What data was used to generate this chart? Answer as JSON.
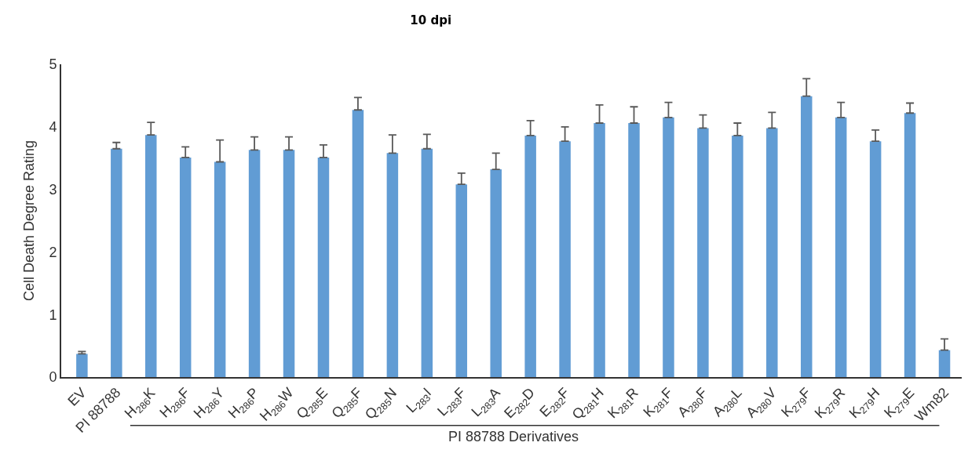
{
  "chart_data": {
    "type": "bar",
    "title": "10 dpi",
    "ylabel": "Cell Death Degree Rating",
    "categories": [
      "EV",
      "PI 88788",
      "H$_{286}$K",
      "H$_{286}$F",
      "H$_{286}$Y",
      "H$_{286}$P",
      "H$_{286}$W",
      "Q$_{285}$E",
      "Q$_{285}$F",
      "Q$_{285}$N",
      "L$_{283}$I",
      "L$_{283}$F",
      "L$_{283}$A",
      "E$_{282}$D",
      "E$_{282}$F",
      "Q$_{281}$H",
      "K$_{281}$R",
      "K$_{281}$F",
      "A$_{280}$F",
      "A$_{280}$L",
      "A$_{280}$V",
      "K$_{279}$F",
      "K$_{279}$R",
      "K$_{279}$H",
      "K$_{279}$E",
      "Wm82"
    ],
    "values": [
      0.37,
      3.65,
      3.87,
      3.51,
      3.44,
      3.63,
      3.63,
      3.51,
      4.27,
      3.58,
      3.65,
      3.08,
      3.32,
      3.86,
      3.77,
      4.06,
      4.06,
      4.15,
      3.98,
      3.86,
      3.98,
      4.49,
      4.15,
      3.77,
      4.22,
      0.43
    ],
    "errors": [
      [
        0.37,
        0.41
      ],
      [
        3.65,
        3.75
      ],
      [
        3.87,
        4.07
      ],
      [
        3.51,
        3.68
      ],
      [
        3.44,
        3.79
      ],
      [
        3.63,
        3.84
      ],
      [
        3.63,
        3.84
      ],
      [
        3.51,
        3.71
      ],
      [
        4.27,
        4.47
      ],
      [
        3.58,
        3.87
      ],
      [
        3.65,
        3.88
      ],
      [
        3.08,
        3.26
      ],
      [
        3.32,
        3.58
      ],
      [
        3.86,
        4.1
      ],
      [
        3.77,
        4.0
      ],
      [
        4.06,
        4.35
      ],
      [
        4.06,
        4.32
      ],
      [
        4.15,
        4.39
      ],
      [
        3.98,
        4.19
      ],
      [
        3.86,
        4.06
      ],
      [
        3.98,
        4.23
      ],
      [
        4.49,
        4.77
      ],
      [
        4.15,
        4.39
      ],
      [
        3.77,
        3.95
      ],
      [
        4.22,
        4.38
      ],
      [
        0.43,
        0.61
      ]
    ],
    "color": "#619cd4",
    "ylim": [
      0,
      5
    ],
    "yticks": [
      0,
      1,
      2,
      3,
      4,
      5
    ],
    "grid": false,
    "annotations": [
      "PI 88788 Derivatives"
    ]
  }
}
